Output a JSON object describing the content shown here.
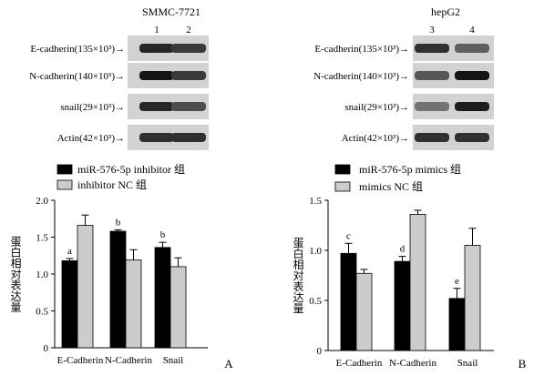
{
  "panels": [
    {
      "letter": "A",
      "blot": {
        "cell_line": "SMMC-7721",
        "lanes": [
          "1",
          "2"
        ],
        "rows": [
          {
            "label": "E-cadherin(135×10³)→",
            "band": [
              0.85,
              0.75
            ]
          },
          {
            "label": "N-cadherin(140×10³)→",
            "band": [
              0.95,
              0.75
            ]
          },
          {
            "label": "snail(29×10³)→",
            "band": [
              0.85,
              0.65
            ]
          },
          {
            "label": "Actin(42×10³)→",
            "band": [
              0.8,
              0.8
            ]
          }
        ]
      },
      "chart_data": {
        "type": "bar",
        "ylabel": "蛋白相对表达量",
        "ylim": [
          0,
          2.0
        ],
        "yticks": [
          "0",
          "0.5",
          "1.0",
          "1.5",
          "2.0"
        ],
        "categories": [
          "E-Cadherin",
          "N-Cadherin",
          "Snail"
        ],
        "series": [
          {
            "name": "miR-576-5p inhibitor 组",
            "color": "#000000",
            "values": [
              1.18,
              1.58,
              1.36
            ],
            "errors": [
              0.03,
              0.02,
              0.07
            ]
          },
          {
            "name": "inhibitor NC 组",
            "color": "#cccccc",
            "values": [
              1.66,
              1.19,
              1.1
            ],
            "errors": [
              0.14,
              0.14,
              0.12
            ]
          }
        ],
        "annotations": [
          {
            "category": "E-Cadherin",
            "series": 0,
            "text": "a"
          },
          {
            "category": "N-Cadherin",
            "series": 0,
            "text": "b"
          },
          {
            "category": "Snail",
            "series": 0,
            "text": "b"
          }
        ],
        "legend_position": "top-left",
        "grid": false
      }
    },
    {
      "letter": "B",
      "blot": {
        "cell_line": "hepG2",
        "lanes": [
          "3",
          "4"
        ],
        "rows": [
          {
            "label": "E-cadherin(135×10³)→",
            "band": [
              0.8,
              0.55
            ]
          },
          {
            "label": "N-cadherin(140×10³)→",
            "band": [
              0.6,
              0.95
            ]
          },
          {
            "label": "snail(29×10³)→",
            "band": [
              0.45,
              0.9
            ]
          },
          {
            "label": "Actin(42×10³)→",
            "band": [
              0.8,
              0.8
            ]
          }
        ]
      },
      "chart_data": {
        "type": "bar",
        "ylabel": "蛋白相对表达量",
        "ylim": [
          0,
          1.5
        ],
        "yticks": [
          "0",
          "0.5",
          "1.0",
          "1.5"
        ],
        "categories": [
          "E-Cadherin",
          "N-Cadherin",
          "Snail"
        ],
        "series": [
          {
            "name": "miR-576-5p mimics 组",
            "color": "#000000",
            "values": [
              0.97,
              0.89,
              0.52
            ],
            "errors": [
              0.1,
              0.05,
              0.1
            ]
          },
          {
            "name": "mimics NC 组",
            "color": "#cccccc",
            "values": [
              0.77,
              1.36,
              1.05
            ],
            "errors": [
              0.04,
              0.04,
              0.17
            ]
          }
        ],
        "annotations": [
          {
            "category": "E-Cadherin",
            "series": 0,
            "text": "c"
          },
          {
            "category": "N-Cadherin",
            "series": 0,
            "text": "d"
          },
          {
            "category": "Snail",
            "series": 0,
            "text": "e"
          }
        ],
        "legend_position": "top-left",
        "grid": false
      }
    }
  ]
}
